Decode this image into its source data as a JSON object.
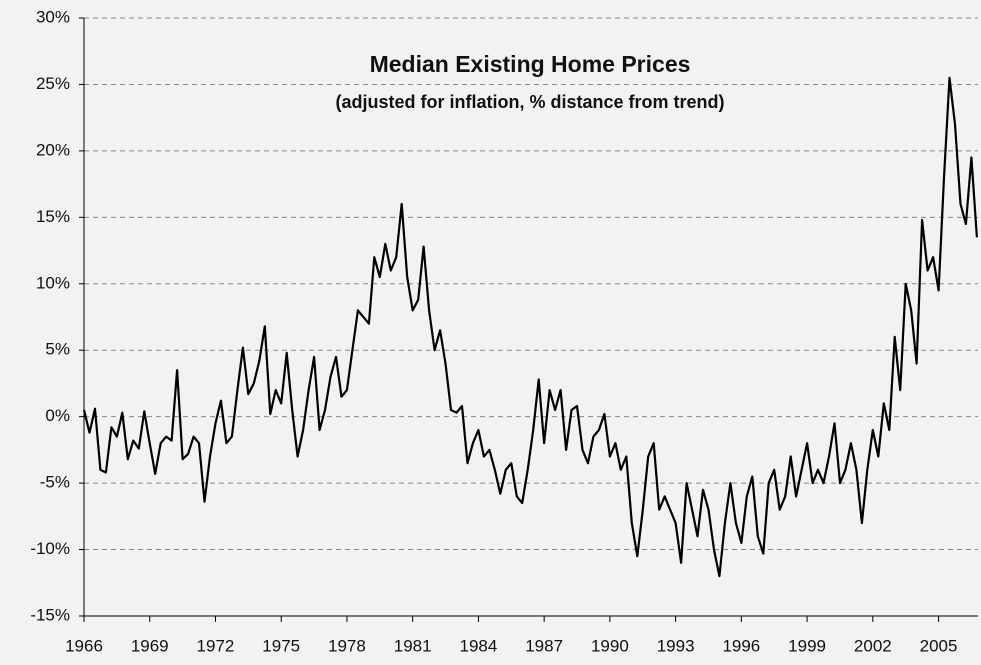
{
  "chart_data": {
    "type": "line",
    "title": "Median Existing Home Prices",
    "subtitle": "(adjusted for inflation, % distance from trend)",
    "x": [
      1966,
      1966.25,
      1966.5,
      1966.75,
      1967,
      1967.25,
      1967.5,
      1967.75,
      1968,
      1968.25,
      1968.5,
      1968.75,
      1969,
      1969.25,
      1969.5,
      1969.75,
      1970,
      1970.25,
      1970.5,
      1970.75,
      1971,
      1971.25,
      1971.5,
      1971.75,
      1972,
      1972.25,
      1972.5,
      1972.75,
      1973,
      1973.25,
      1973.5,
      1973.75,
      1974,
      1974.25,
      1974.5,
      1974.75,
      1975,
      1975.25,
      1975.5,
      1975.75,
      1976,
      1976.25,
      1976.5,
      1976.75,
      1977,
      1977.25,
      1977.5,
      1977.75,
      1978,
      1978.25,
      1978.5,
      1978.75,
      1979,
      1979.25,
      1979.5,
      1979.75,
      1980,
      1980.25,
      1980.5,
      1980.75,
      1981,
      1981.25,
      1981.5,
      1981.75,
      1982,
      1982.25,
      1982.5,
      1982.75,
      1983,
      1983.25,
      1983.5,
      1983.75,
      1984,
      1984.25,
      1984.5,
      1984.75,
      1985,
      1985.25,
      1985.5,
      1985.75,
      1986,
      1986.25,
      1986.5,
      1986.75,
      1987,
      1987.25,
      1987.5,
      1987.75,
      1988,
      1988.25,
      1988.5,
      1988.75,
      1989,
      1989.25,
      1989.5,
      1989.75,
      1990,
      1990.25,
      1990.5,
      1990.75,
      1991,
      1991.25,
      1991.5,
      1991.75,
      1992,
      1992.25,
      1992.5,
      1992.75,
      1993,
      1993.25,
      1993.5,
      1993.75,
      1994,
      1994.25,
      1994.5,
      1994.75,
      1995,
      1995.25,
      1995.5,
      1995.75,
      1996,
      1996.25,
      1996.5,
      1996.75,
      1997,
      1997.25,
      1997.5,
      1997.75,
      1998,
      1998.25,
      1998.5,
      1998.75,
      1999,
      1999.25,
      1999.5,
      1999.75,
      2000,
      2000.25,
      2000.5,
      2000.75,
      2001,
      2001.25,
      2001.5,
      2001.75,
      2002,
      2002.25,
      2002.5,
      2002.75,
      2003,
      2003.25,
      2003.5,
      2003.75,
      2004,
      2004.25,
      2004.5,
      2004.75,
      2005,
      2005.25,
      2005.5,
      2005.75,
      2006,
      2006.25,
      2006.5,
      2006.75
    ],
    "series": [
      {
        "color": "#000000",
        "values": [
          0.5,
          -1.2,
          0.6,
          -4,
          -4.2,
          -0.8,
          -1.5,
          0.3,
          -3.2,
          -1.8,
          -2.4,
          0.4,
          -2,
          -4.3,
          -2,
          -1.5,
          -1.8,
          3.5,
          -3.2,
          -2.8,
          -1.5,
          -2,
          -6.4,
          -3,
          -0.5,
          1.2,
          -2,
          -1.5,
          2,
          5.2,
          1.7,
          2.5,
          4.2,
          6.8,
          0.2,
          2,
          1,
          4.8,
          0.5,
          -3,
          -1,
          2,
          4.5,
          -1,
          0.5,
          3,
          4.5,
          1.5,
          2,
          5,
          8,
          7.5,
          7,
          12,
          10.5,
          13,
          11,
          12,
          16,
          10.5,
          8,
          8.8,
          12.8,
          8,
          5,
          6.5,
          4,
          0.5,
          0.3,
          0.8,
          -3.5,
          -2,
          -1,
          -3,
          -2.5,
          -4,
          -5.8,
          -4,
          -3.5,
          -6,
          -6.5,
          -4,
          -1,
          2.8,
          -2,
          2,
          0.5,
          2,
          -2.5,
          0.5,
          0.8,
          -2.5,
          -3.5,
          -1.5,
          -1,
          0.2,
          -3,
          -2,
          -4,
          -3,
          -8,
          -10.5,
          -7,
          -3,
          -2,
          -7,
          -6,
          -7,
          -8,
          -11,
          -5,
          -7,
          -9,
          -5.5,
          -7,
          -10,
          -12,
          -8,
          -5,
          -8,
          -9.5,
          -6,
          -4.5,
          -9,
          -10.3,
          -5,
          -4,
          -7,
          -6,
          -3,
          -6,
          -4,
          -2,
          -5,
          -4,
          -5,
          -3,
          -0.5,
          -5,
          -4,
          -2,
          -4,
          -8,
          -4,
          -1,
          -3,
          1,
          -1,
          6,
          2,
          10,
          8,
          4,
          14.8,
          11,
          12,
          9.5,
          18,
          25.5,
          22,
          16,
          14.5,
          19.5,
          13.5
        ]
      }
    ],
    "xlim": [
      1966,
      2006.8
    ],
    "xticks": [
      1966,
      1969,
      1972,
      1975,
      1978,
      1981,
      1984,
      1987,
      1990,
      1993,
      1996,
      1999,
      2002,
      2005
    ],
    "ylim": [
      -15,
      30
    ],
    "yticks": [
      {
        "value": -15,
        "label": "-15%"
      },
      {
        "value": -10,
        "label": "-10%"
      },
      {
        "value": -5,
        "label": "-5%"
      },
      {
        "value": 0,
        "label": "0%"
      },
      {
        "value": 5,
        "label": "5%"
      },
      {
        "value": 10,
        "label": "10%"
      },
      {
        "value": 15,
        "label": "15%"
      },
      {
        "value": 20,
        "label": "20%"
      },
      {
        "value": 25,
        "label": "25%"
      },
      {
        "value": 30,
        "label": "30%"
      }
    ],
    "grid": true
  }
}
